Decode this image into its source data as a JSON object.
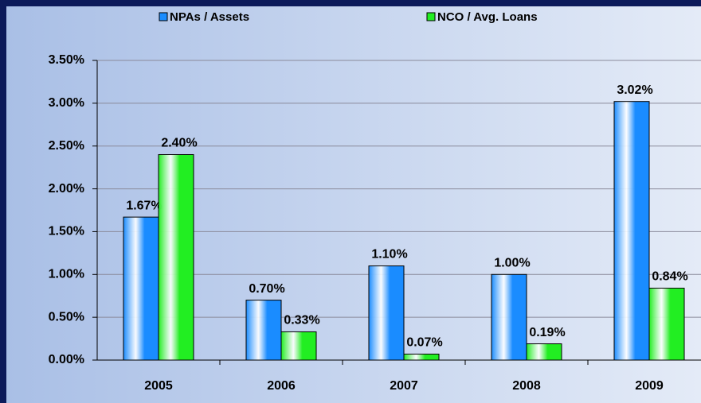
{
  "chart_data": {
    "type": "bar",
    "categories": [
      "2005",
      "2006",
      "2007",
      "2008",
      "2009"
    ],
    "series": [
      {
        "name": "NPAs / Assets",
        "color": "#1a8cff",
        "values": [
          1.67,
          0.7,
          1.1,
          1.0,
          3.02
        ],
        "value_labels": [
          "1.67%",
          "0.70%",
          "1.10%",
          "1.00%",
          "3.02%"
        ]
      },
      {
        "name": "NCO / Avg. Loans",
        "color": "#22ee22",
        "values": [
          2.4,
          0.33,
          0.07,
          0.19,
          0.84
        ],
        "value_labels": [
          "2.40%",
          "0.33%",
          "0.07%",
          "0.19%",
          "0.84%"
        ]
      }
    ],
    "ylim": [
      0,
      3.5
    ],
    "yticks": [
      {
        "value": 0,
        "label": "0.00%"
      },
      {
        "value": 0.5,
        "label": "0.50%"
      },
      {
        "value": 1.0,
        "label": "1.00%"
      },
      {
        "value": 1.5,
        "label": "1.50%"
      },
      {
        "value": 2.0,
        "label": "2.00%"
      },
      {
        "value": 2.5,
        "label": "2.50%"
      },
      {
        "value": 3.0,
        "label": "3.00%"
      },
      {
        "value": 3.5,
        "label": "3.50%"
      }
    ],
    "grid": true,
    "legend": "top"
  }
}
